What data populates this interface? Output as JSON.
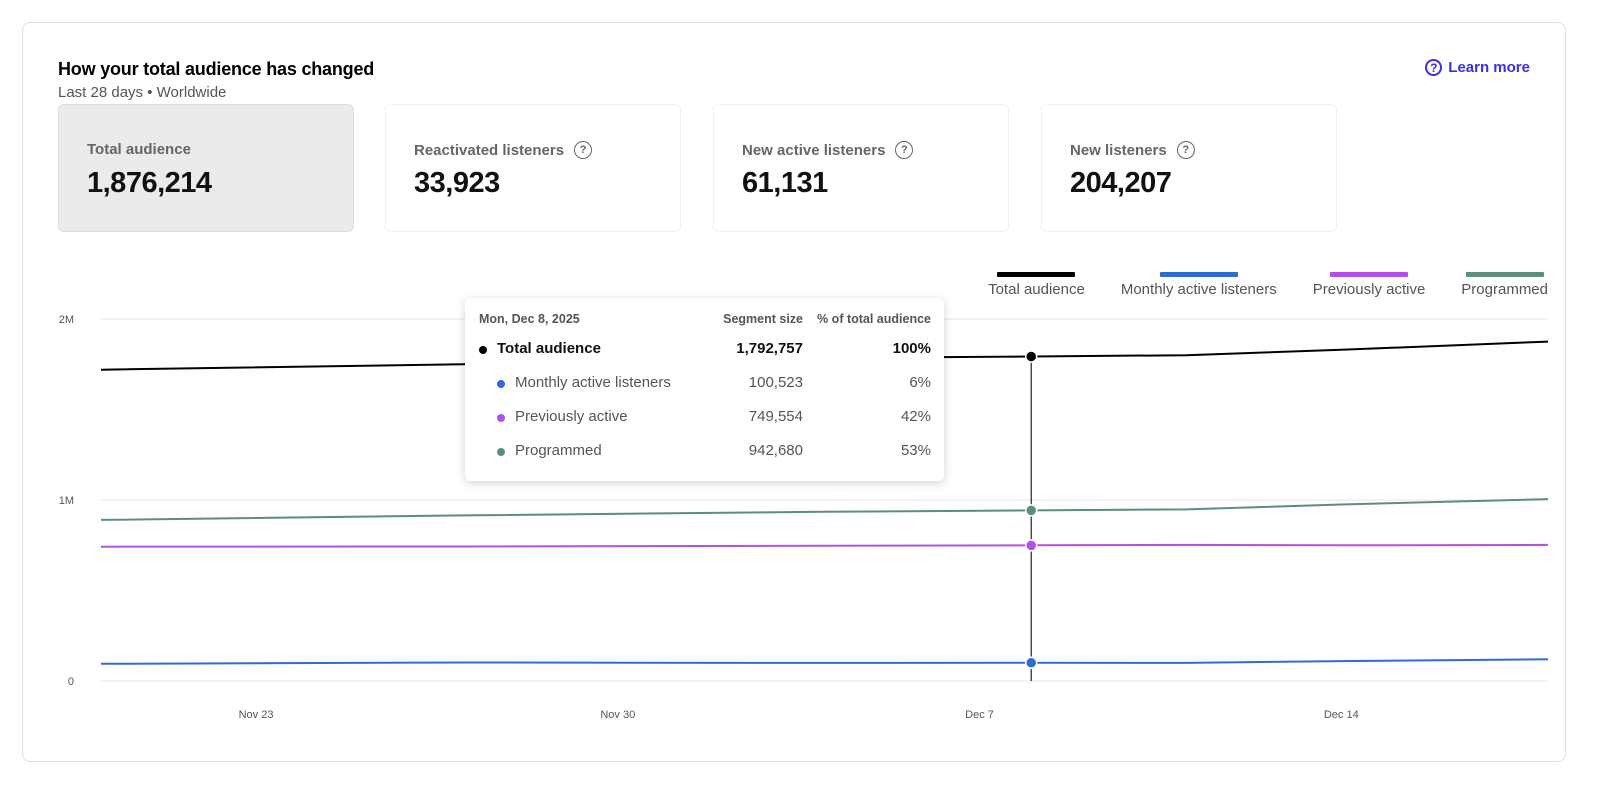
{
  "header": {
    "title": "How your total audience has changed",
    "subtitle": "Last 28 days • Worldwide",
    "learn_more": "Learn more"
  },
  "metrics": [
    {
      "label": "Total audience",
      "value": "1,876,214",
      "selected": true
    },
    {
      "label": "Reactivated listeners",
      "value": "33,923",
      "help": true
    },
    {
      "label": "New active listeners",
      "value": "61,131",
      "help": true
    },
    {
      "label": "New listeners",
      "value": "204,207",
      "help": true
    }
  ],
  "tooltip": {
    "date": "Mon, Dec 8, 2025",
    "col_size": "Segment size",
    "col_pct": "% of total audience",
    "rows": [
      {
        "name": "Total audience",
        "size": "1,792,757",
        "pct": "100%"
      },
      {
        "name": "Monthly active listeners",
        "size": "100,523",
        "pct": "6%"
      },
      {
        "name": "Previously active",
        "size": "749,554",
        "pct": "42%"
      },
      {
        "name": "Programmed",
        "size": "942,680",
        "pct": "53%"
      }
    ]
  },
  "chart_data": {
    "type": "line",
    "x_start": "2025-11-20",
    "x_end": "2025-12-18",
    "x_ticks": [
      {
        "label": "Nov 23",
        "date": "2025-11-23"
      },
      {
        "label": "Nov 30",
        "date": "2025-11-30"
      },
      {
        "label": "Dec 7",
        "date": "2025-12-07"
      },
      {
        "label": "Dec 14",
        "date": "2025-12-14"
      }
    ],
    "y_ticks": [
      {
        "label": "0",
        "value": 0
      },
      {
        "label": "1M",
        "value": 1000000
      },
      {
        "label": "2M",
        "value": 2000000
      }
    ],
    "ylim": [
      0,
      2000000
    ],
    "grid": true,
    "legend_position": "top-right",
    "highlight_date": "2025-12-08",
    "series": [
      {
        "name": "Total audience",
        "color": "#000000",
        "points": [
          [
            "2025-11-20",
            1720000
          ],
          [
            "2025-11-27",
            1750000
          ],
          [
            "2025-12-04",
            1785000
          ],
          [
            "2025-12-08",
            1792757
          ],
          [
            "2025-12-11",
            1800000
          ],
          [
            "2025-12-14",
            1830000
          ],
          [
            "2025-12-18",
            1875000
          ]
        ]
      },
      {
        "name": "Monthly active listeners",
        "color": "#2e6bd6",
        "points": [
          [
            "2025-11-20",
            95000
          ],
          [
            "2025-11-27",
            102000
          ],
          [
            "2025-12-04",
            100000
          ],
          [
            "2025-12-08",
            100523
          ],
          [
            "2025-12-11",
            100000
          ],
          [
            "2025-12-14",
            110000
          ],
          [
            "2025-12-18",
            120000
          ]
        ]
      },
      {
        "name": "Previously active",
        "color": "#b24fe8",
        "points": [
          [
            "2025-11-20",
            742000
          ],
          [
            "2025-11-27",
            743000
          ],
          [
            "2025-12-04",
            747000
          ],
          [
            "2025-12-08",
            749554
          ],
          [
            "2025-12-11",
            752000
          ],
          [
            "2025-12-14",
            750000
          ],
          [
            "2025-12-18",
            752000
          ]
        ]
      },
      {
        "name": "Programmed",
        "color": "#5a8f7b",
        "points": [
          [
            "2025-11-20",
            890000
          ],
          [
            "2025-11-27",
            915000
          ],
          [
            "2025-12-04",
            935000
          ],
          [
            "2025-12-08",
            942680
          ],
          [
            "2025-12-11",
            948000
          ],
          [
            "2025-12-14",
            975000
          ],
          [
            "2025-12-18",
            1005000
          ]
        ]
      }
    ]
  }
}
